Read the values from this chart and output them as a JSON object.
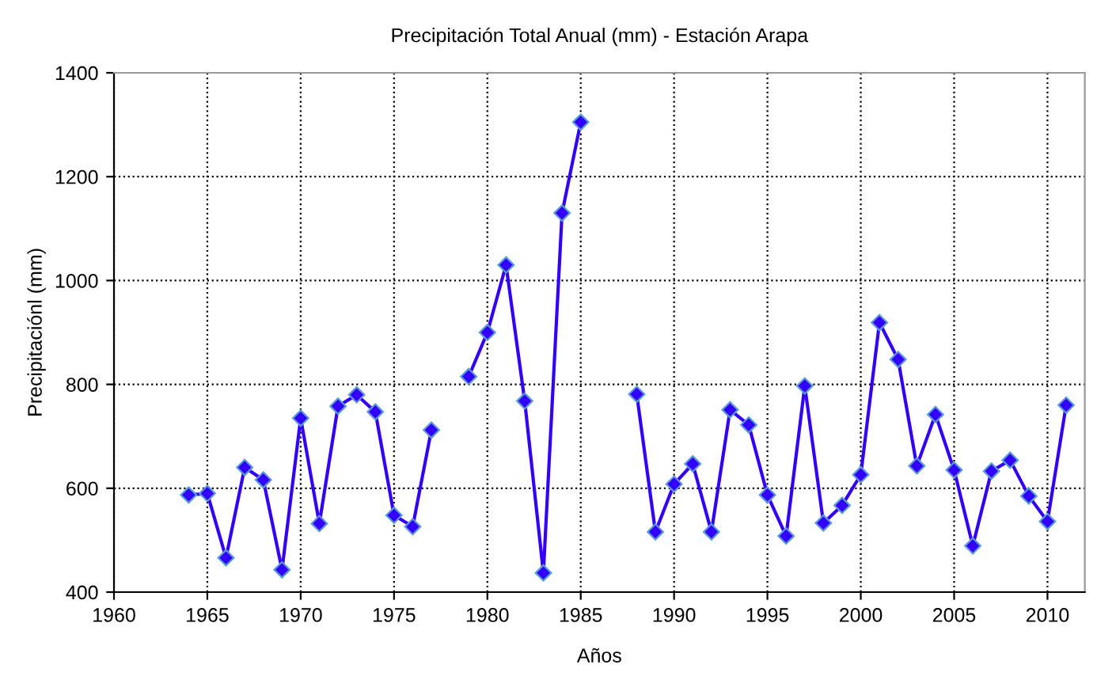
{
  "chart_data": {
    "type": "line",
    "title": "Precipitación Total Anual (mm) - Estación Arapa",
    "xlabel": "Años",
    "ylabel": "Precipitaciónl (mm)",
    "x": [
      1964,
      1965,
      1966,
      1967,
      1968,
      1969,
      1970,
      1971,
      1972,
      1973,
      1974,
      1975,
      1976,
      1977,
      1978,
      1979,
      1980,
      1981,
      1982,
      1983,
      1984,
      1985,
      1986,
      1987,
      1988,
      1989,
      1990,
      1991,
      1992,
      1993,
      1994,
      1995,
      1996,
      1997,
      1998,
      1999,
      2000,
      2001,
      2002,
      2003,
      2004,
      2005,
      2006,
      2007,
      2008,
      2009,
      2010,
      2011
    ],
    "series": [
      {
        "color": "#3300ff",
        "values": [
          587,
          590,
          466,
          640,
          616,
          443,
          735,
          532,
          758,
          780,
          747,
          548,
          526,
          712,
          null,
          815,
          900,
          1030,
          768,
          437,
          1130,
          1305,
          null,
          null,
          781,
          516,
          608,
          647,
          516,
          751,
          722,
          587,
          508,
          797,
          533,
          567,
          626,
          919,
          848,
          643,
          742,
          635,
          489,
          633,
          654,
          585,
          536,
          760
        ]
      }
    ],
    "xlim": [
      1960,
      2012
    ],
    "xticks": [
      1960,
      1965,
      1970,
      1975,
      1980,
      1985,
      1990,
      1995,
      2000,
      2005,
      2010
    ],
    "ylim": [
      400,
      1400
    ],
    "yticks": [
      400,
      600,
      800,
      1000,
      1200,
      1400
    ],
    "grid": true,
    "marker": "diamond",
    "line_style": "solid"
  }
}
